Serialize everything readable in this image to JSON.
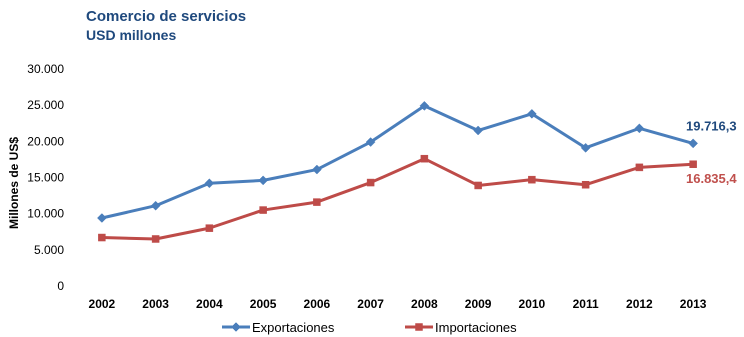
{
  "chart_data": {
    "type": "line",
    "title": "Comercio de servicios",
    "subtitle": "USD millones",
    "xlabel": "",
    "ylabel": "Millones de US$",
    "categories": [
      "2002",
      "2003",
      "2004",
      "2005",
      "2006",
      "2007",
      "2008",
      "2009",
      "2010",
      "2011",
      "2012",
      "2013"
    ],
    "ylim": [
      0,
      30000
    ],
    "yticks": [
      0,
      5000,
      10000,
      15000,
      20000,
      25000,
      30000
    ],
    "ytick_labels": [
      "0",
      "5.000",
      "10.000",
      "15.000",
      "20.000",
      "25.000",
      "30.000"
    ],
    "grid": false,
    "legend_position": "bottom",
    "series": [
      {
        "name": "Exportaciones",
        "color": "#4a7ebb",
        "marker": "diamond",
        "values": [
          9400,
          11100,
          14200,
          14600,
          16100,
          19900,
          24900,
          21500,
          23800,
          19100,
          21800,
          19716.3
        ],
        "end_label": "19.716,3",
        "end_label_color": "#1f497d"
      },
      {
        "name": "Importaciones",
        "color": "#be4b48",
        "marker": "square",
        "values": [
          6700,
          6500,
          8000,
          10500,
          11600,
          14300,
          17600,
          13900,
          14700,
          14000,
          16400,
          16835.4
        ],
        "end_label": "16.835,4",
        "end_label_color": "#c0504d"
      }
    ]
  }
}
